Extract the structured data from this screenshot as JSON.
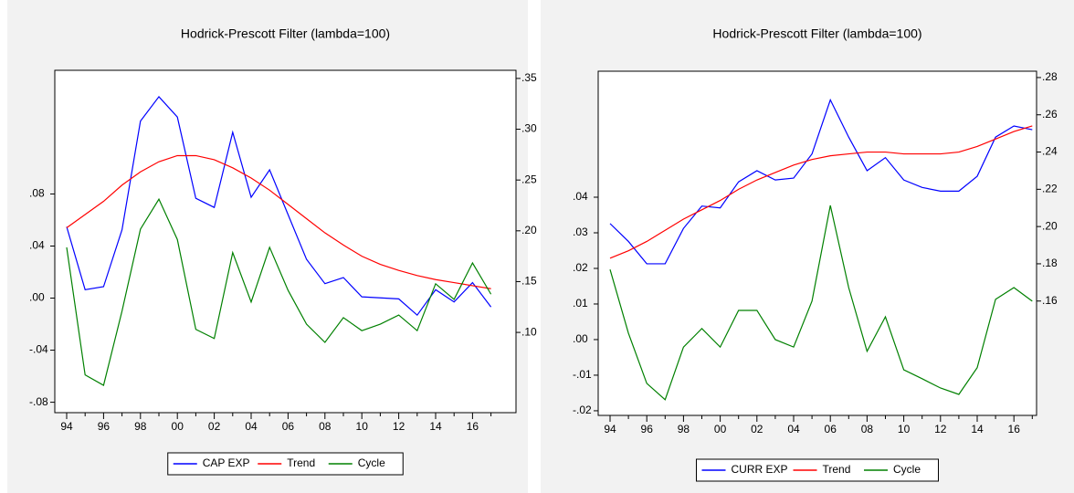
{
  "chart_data": [
    {
      "type": "line",
      "title": "Hodrick-Prescott Filter (lambda=100)",
      "categories": [
        "94",
        null,
        "96",
        null,
        "98",
        null,
        "00",
        null,
        "02",
        null,
        "04",
        null,
        "06",
        null,
        "08",
        null,
        "10",
        null,
        "12",
        null,
        "14",
        null,
        "16",
        null
      ],
      "series": [
        {
          "name": "CAP EXP",
          "color": "#0000ff",
          "axis": "y2",
          "values": [
            0.204,
            0.142,
            0.145,
            0.201,
            0.308,
            0.332,
            0.312,
            0.232,
            0.223,
            0.297,
            0.233,
            0.26,
            0.216,
            0.172,
            0.148,
            0.154,
            0.135,
            0.134,
            0.133,
            0.117,
            0.142,
            0.13,
            0.149,
            0.125
          ]
        },
        {
          "name": "Trend",
          "color": "#ff0000",
          "axis": "y2",
          "values": [
            0.203,
            0.216,
            0.229,
            0.245,
            0.258,
            0.268,
            0.274,
            0.274,
            0.27,
            0.262,
            0.252,
            0.24,
            0.226,
            0.212,
            0.198,
            0.186,
            0.175,
            0.167,
            0.161,
            0.156,
            0.152,
            0.149,
            0.146,
            0.143
          ]
        },
        {
          "name": "Cycle",
          "color": "#008000",
          "values": [
            0.039,
            -0.059,
            -0.067,
            -0.01,
            0.053,
            0.076,
            0.045,
            -0.024,
            -0.031,
            0.035,
            -0.003,
            0.039,
            0.006,
            -0.02,
            -0.034,
            -0.015,
            -0.025,
            -0.02,
            -0.013,
            -0.025,
            0.011,
            -0.001,
            0.027,
            0.003
          ]
        }
      ],
      "ylim": [
        -0.088,
        0.175
      ],
      "yticks": [
        {
          "value": -0.08,
          "label": "-.08"
        },
        {
          "value": -0.04,
          "label": "-.04"
        },
        {
          "value": 0,
          "label": ".00"
        },
        {
          "value": 0.04,
          "label": ".04"
        },
        {
          "value": 0.08,
          "label": ".08"
        }
      ],
      "y2lim": [
        0.021,
        0.358
      ],
      "y2ticks": [
        {
          "value": 0.1,
          "label": ".10"
        },
        {
          "value": 0.15,
          "label": ".15"
        },
        {
          "value": 0.2,
          "label": ".20"
        },
        {
          "value": 0.25,
          "label": ".25"
        },
        {
          "value": 0.3,
          "label": ".30"
        },
        {
          "value": 0.35,
          "label": ".35"
        }
      ],
      "legend": "bottom"
    },
    {
      "type": "line",
      "title": "Hodrick-Prescott Filter (lambda=100)",
      "categories": [
        "94",
        null,
        "96",
        null,
        "98",
        null,
        "00",
        null,
        "02",
        null,
        "04",
        null,
        "06",
        null,
        "08",
        null,
        "10",
        null,
        "12",
        null,
        "14",
        null,
        "16",
        null
      ],
      "series": [
        {
          "name": "CURR EXP",
          "color": "#0000ff",
          "axis": "y2",
          "values": [
            0.2016,
            0.192,
            0.18,
            0.18,
            0.199,
            0.211,
            0.21,
            0.224,
            0.23,
            0.225,
            0.226,
            0.239,
            0.268,
            0.248,
            0.23,
            0.237,
            0.225,
            0.221,
            0.219,
            0.219,
            0.227,
            0.248,
            0.254,
            0.252
          ]
        },
        {
          "name": "Trend",
          "color": "#ff0000",
          "axis": "y2",
          "values": [
            0.183,
            0.187,
            0.192,
            0.198,
            0.204,
            0.209,
            0.214,
            0.22,
            0.225,
            0.229,
            0.233,
            0.236,
            0.238,
            0.239,
            0.24,
            0.24,
            0.239,
            0.239,
            0.239,
            0.24,
            0.243,
            0.247,
            0.251,
            0.254
          ]
        },
        {
          "name": "Cycle",
          "color": "#008000",
          "values": [
            0.0197,
            0.0018,
            -0.0123,
            -0.0169,
            -0.0021,
            0.0031,
            -0.0021,
            0.0082,
            0.0082,
            0.0,
            -0.0021,
            0.0108,
            0.0377,
            0.0146,
            -0.0033,
            0.0064,
            -0.0085,
            -0.011,
            -0.0136,
            -0.0154,
            -0.0079,
            0.0113,
            0.0146,
            0.0108
          ]
        }
      ],
      "ylim": [
        -0.0213,
        0.0754
      ],
      "yticks": [
        {
          "value": -0.02,
          "label": "-.02"
        },
        {
          "value": -0.01,
          "label": "-.01"
        },
        {
          "value": 0,
          "label": ".00"
        },
        {
          "value": 0.01,
          "label": ".01"
        },
        {
          "value": 0.02,
          "label": ".02"
        },
        {
          "value": 0.03,
          "label": ".03"
        },
        {
          "value": 0.04,
          "label": ".04"
        }
      ],
      "y2lim": [
        0.0986,
        0.2834
      ],
      "y2ticks": [
        {
          "value": 0.16,
          "label": ".16"
        },
        {
          "value": 0.18,
          "label": ".18"
        },
        {
          "value": 0.2,
          "label": ".20"
        },
        {
          "value": 0.22,
          "label": ".22"
        },
        {
          "value": 0.24,
          "label": ".24"
        },
        {
          "value": 0.26,
          "label": ".26"
        },
        {
          "value": 0.28,
          "label": ".28"
        }
      ],
      "legend": "bottom"
    }
  ]
}
